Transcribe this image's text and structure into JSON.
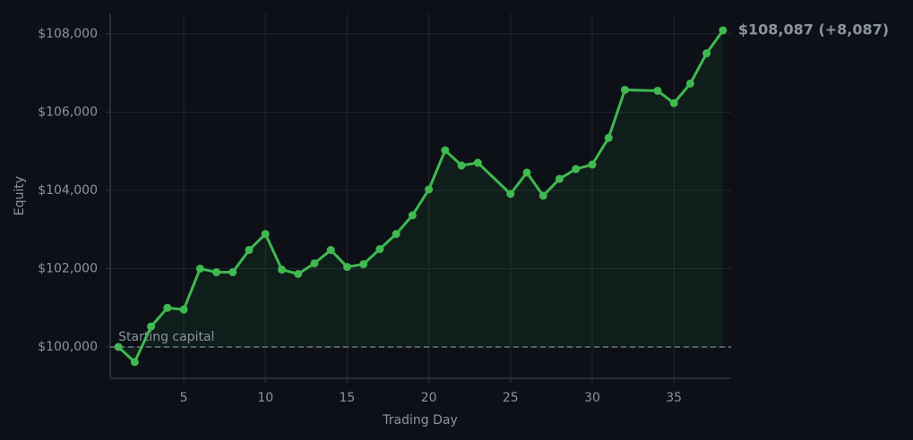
{
  "chart_data": {
    "type": "line",
    "x_label": "Trading Day",
    "y_label": "Equity",
    "x": [
      1,
      2,
      3,
      4,
      5,
      6,
      7,
      8,
      9,
      10,
      11,
      12,
      13,
      14,
      15,
      16,
      17,
      18,
      19,
      20,
      21,
      22,
      23,
      25,
      26,
      27,
      28,
      29,
      30,
      31,
      32,
      34,
      35,
      36,
      37,
      38
    ],
    "series": [
      {
        "name": "Equity",
        "color": "#3fb950",
        "values": [
          100000,
          99614,
          100523,
          101000,
          100955,
          102000,
          101909,
          101909,
          102477,
          102886,
          101977,
          101864,
          102136,
          102477,
          102045,
          102114,
          102500,
          102886,
          103364,
          104023,
          105023,
          104636,
          104705,
          103909,
          104455,
          103864,
          104295,
          104545,
          104659,
          105341,
          106568,
          106545,
          106227,
          106727,
          107500,
          108087
        ]
      }
    ],
    "xlim": [
      0.5,
      38.5
    ],
    "xticks": [
      5,
      10,
      15,
      20,
      25,
      30,
      35
    ],
    "ylim": [
      99200,
      108520
    ],
    "yticks": [
      {
        "value": 100000,
        "label": "$100,000"
      },
      {
        "value": 102000,
        "label": "$102,000"
      },
      {
        "value": 104000,
        "label": "$104,000"
      },
      {
        "value": 106000,
        "label": "$106,000"
      },
      {
        "value": 108000,
        "label": "$108,000"
      }
    ],
    "grid": true,
    "reference_line": {
      "value": 100000,
      "label": "Starting capital"
    },
    "annotation": "$108,087  (+8,087)"
  }
}
